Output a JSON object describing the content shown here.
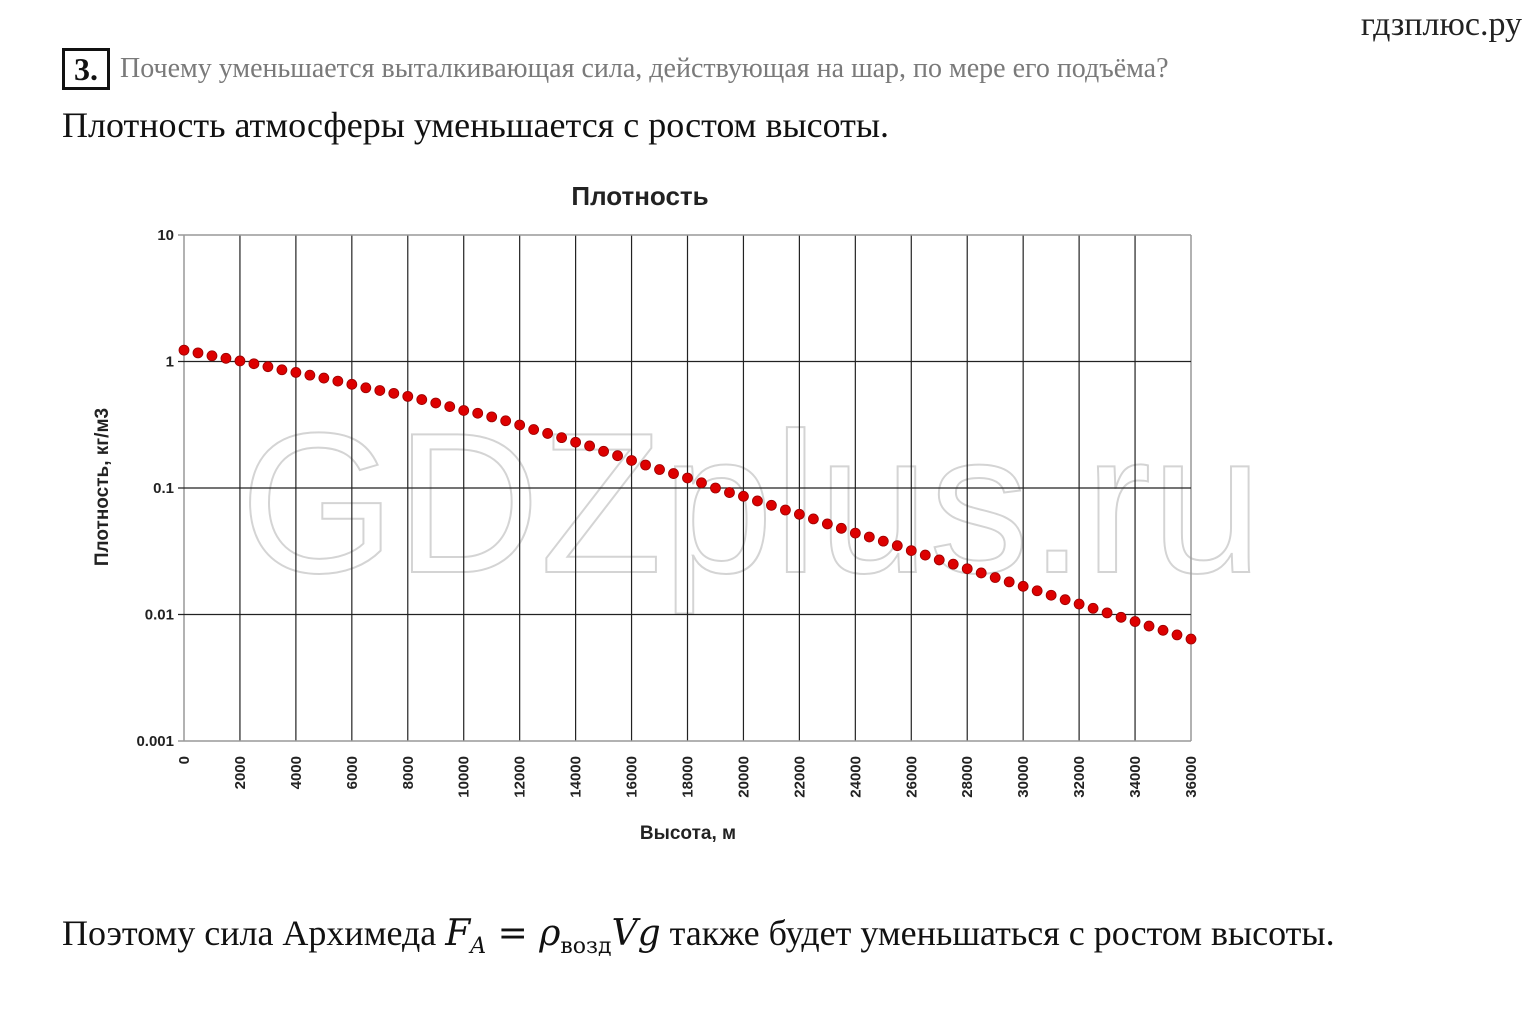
{
  "site_name": "гдзплюс.ру",
  "task": {
    "number": "3.",
    "question": "Почему уменьшается выталкивающая сила, действующая на шар, по мере его подъёма?",
    "answer": "Плотность атмосферы уменьшается с ростом высоты."
  },
  "watermark": "GDZplus.ru",
  "chart_data": {
    "type": "scatter",
    "title": "Плотность",
    "xlabel": "Высота, м",
    "ylabel": "Плотность, кг/м3",
    "xlim": [
      0,
      36000
    ],
    "ylim": [
      0.001,
      10
    ],
    "y_scale": "log",
    "grid": true,
    "legend": "none",
    "x_ticks": [
      "0",
      "2000",
      "4000",
      "6000",
      "8000",
      "10000",
      "12000",
      "14000",
      "16000",
      "18000",
      "20000",
      "22000",
      "24000",
      "26000",
      "28000",
      "30000",
      "32000",
      "34000",
      "36000"
    ],
    "y_ticks": [
      "10",
      "1",
      "0.1",
      "0.01",
      "0.001"
    ],
    "marker_color": "#dd0000",
    "series": [
      {
        "x": [
          0,
          500,
          1000,
          1500,
          2000,
          2500,
          3000,
          3500,
          4000,
          4500,
          5000,
          5500,
          6000,
          6500,
          7000,
          7500,
          8000,
          8500,
          9000,
          9500,
          10000,
          10500,
          11000,
          11500,
          12000,
          12500,
          13000,
          13500,
          14000,
          14500,
          15000,
          15500,
          16000,
          16500,
          17000,
          17500,
          18000,
          18500,
          19000,
          19500,
          20000,
          20500,
          21000,
          21500,
          22000,
          22500,
          23000,
          23500,
          24000,
          24500,
          25000,
          25500,
          26000,
          26500,
          27000,
          27500,
          28000,
          28500,
          29000,
          29500,
          30000,
          30500,
          31000,
          31500,
          32000,
          32500,
          33000,
          33500,
          34000,
          34500,
          35000,
          35500,
          36000
        ],
        "y": [
          1.23,
          1.17,
          1.11,
          1.06,
          1.01,
          0.96,
          0.91,
          0.86,
          0.82,
          0.78,
          0.74,
          0.7,
          0.66,
          0.62,
          0.59,
          0.56,
          0.53,
          0.5,
          0.47,
          0.44,
          0.41,
          0.39,
          0.365,
          0.34,
          0.315,
          0.29,
          0.27,
          0.25,
          0.23,
          0.215,
          0.195,
          0.18,
          0.165,
          0.152,
          0.14,
          0.13,
          0.12,
          0.11,
          0.1,
          0.092,
          0.086,
          0.079,
          0.073,
          0.067,
          0.062,
          0.057,
          0.052,
          0.048,
          0.044,
          0.041,
          0.038,
          0.035,
          0.032,
          0.0295,
          0.027,
          0.025,
          0.023,
          0.0213,
          0.0196,
          0.0181,
          0.0167,
          0.0154,
          0.0142,
          0.0131,
          0.0121,
          0.0112,
          0.0103,
          0.0095,
          0.0088,
          0.0081,
          0.0075,
          0.0069,
          0.0064
        ]
      }
    ]
  },
  "formula_line": {
    "prefix": "Поэтому сила Архимеда ",
    "F": "F",
    "F_sub": "A",
    "equals": " = ",
    "rho": "ρ",
    "rho_sub": "возд",
    "Vg": "Vg",
    "suffix": " также будет уменьшаться с ростом высоты."
  }
}
